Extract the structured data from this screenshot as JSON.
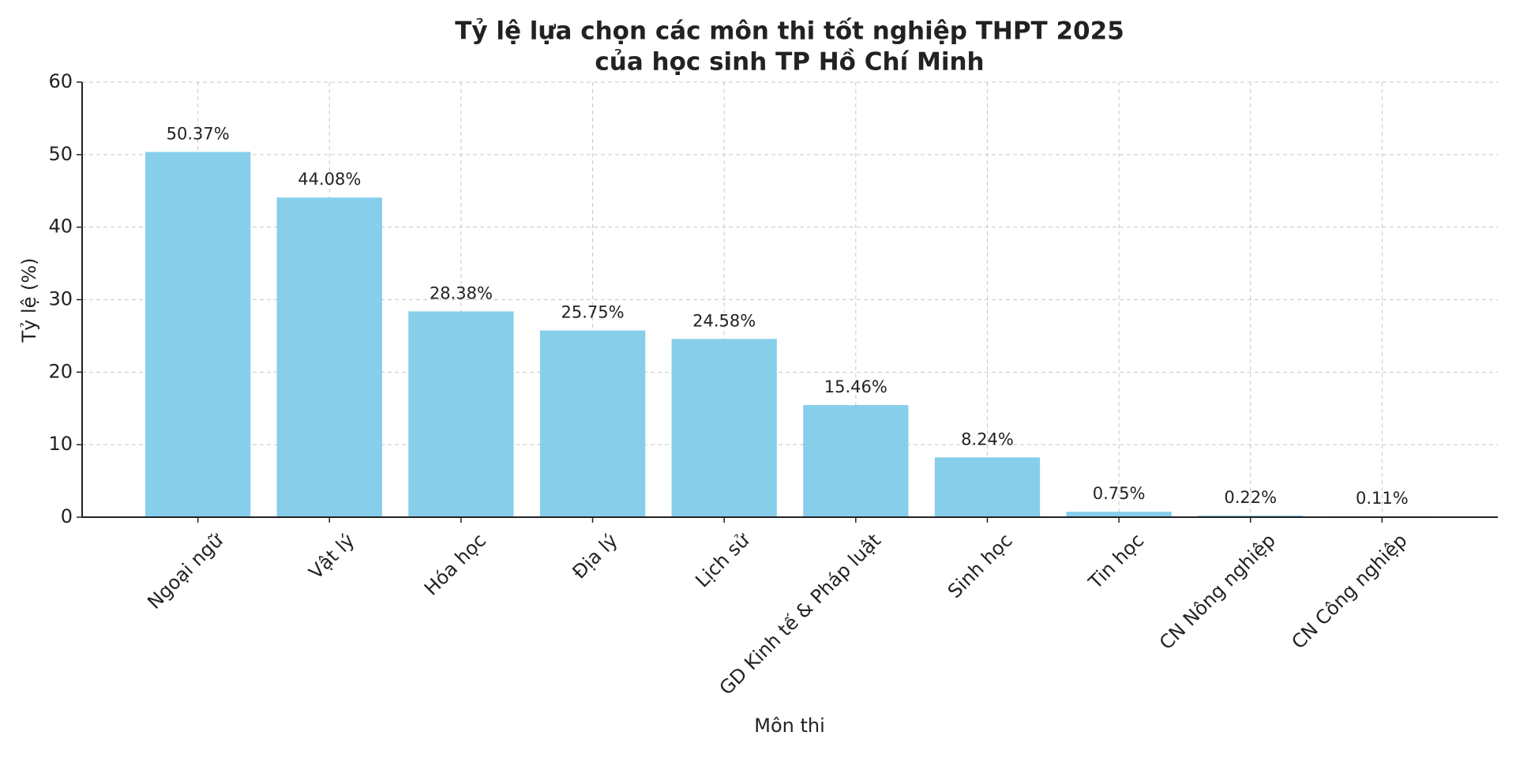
{
  "chart_data": {
    "type": "bar",
    "title": [
      "Tỷ lệ lựa chọn các môn thi tốt nghiệp THPT 2025",
      "của học sinh TP Hồ Chí Minh"
    ],
    "x_label": "Môn thi",
    "y_label": "Tỷ lệ (%)",
    "categories": [
      "Ngoại ngữ",
      "Vật lý",
      "Hóa học",
      "Địa lý",
      "Lịch sử",
      "GD Kinh tế & Pháp luật",
      "Sinh học",
      "Tin học",
      "CN Nông nghiệp",
      "CN Công nghiệp"
    ],
    "values": [
      50.37,
      44.08,
      28.38,
      25.75,
      24.58,
      15.46,
      8.24,
      0.75,
      0.22,
      0.11
    ],
    "value_labels": [
      "50.37%",
      "44.08%",
      "28.38%",
      "25.75%",
      "24.58%",
      "15.46%",
      "8.24%",
      "0.75%",
      "0.22%",
      "0.11%"
    ],
    "color": "#87ceeb",
    "ylim": [
      0,
      60
    ],
    "yticks": [
      0,
      10,
      20,
      30,
      40,
      50,
      60
    ],
    "grid": true
  }
}
